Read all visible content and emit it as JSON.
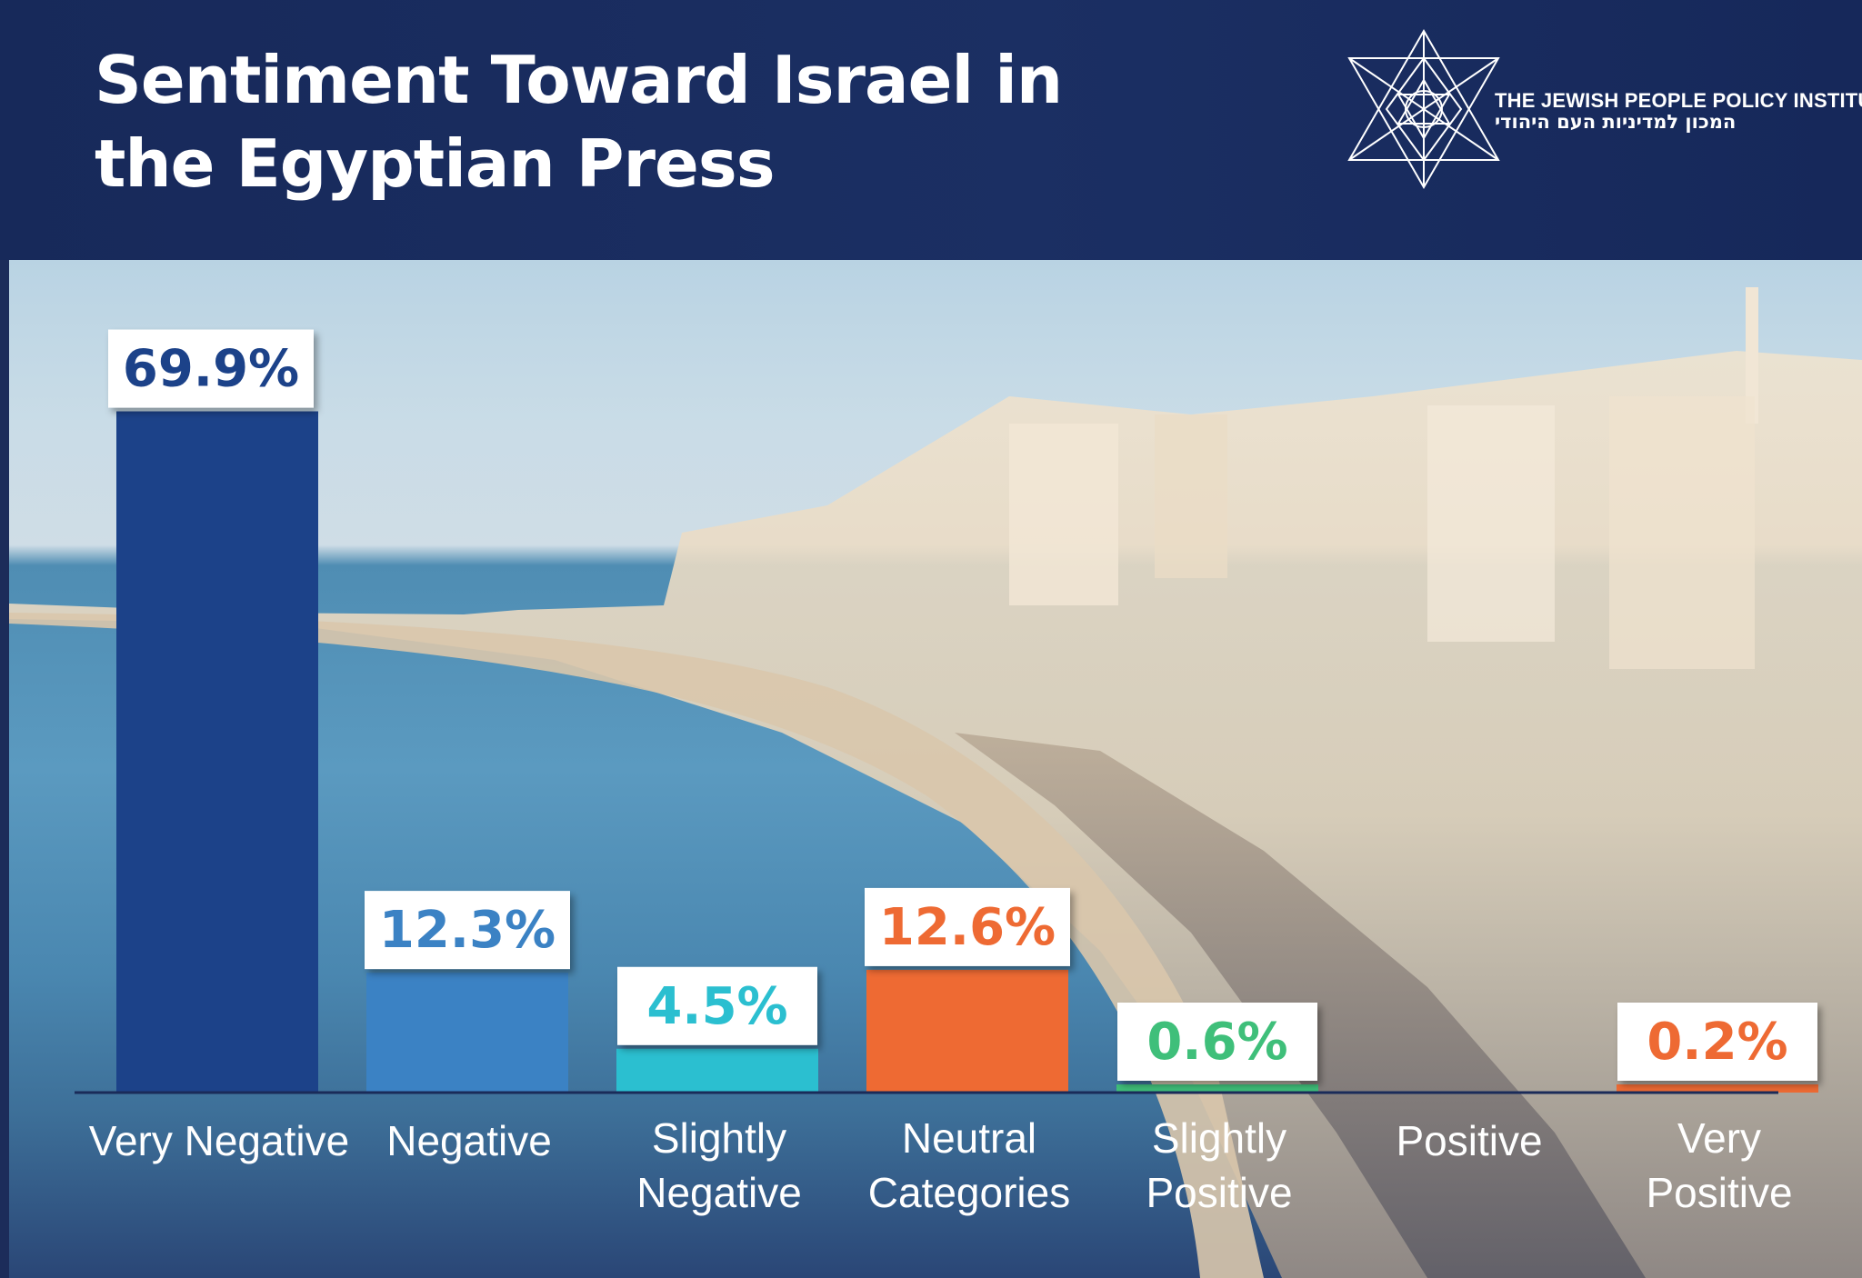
{
  "header": {
    "title_line1": "Sentiment Toward Israel in",
    "title_line2": "the Egyptian Press",
    "logo_en": "THE JEWISH PEOPLE POLICY INSTITUTE",
    "logo_he": "המכון למדיניות העם היהודי",
    "logo_icon": "star-of-david-icon"
  },
  "chart_data": {
    "type": "bar",
    "title": "Sentiment Toward Israel in the Egyptian Press",
    "categories": [
      [
        "Very Negative"
      ],
      [
        "Negative"
      ],
      [
        "Slightly",
        "Negative"
      ],
      [
        "Neutral",
        "Categories"
      ],
      [
        "Slightly",
        "Positive"
      ],
      [
        "Positive"
      ],
      [
        "Very",
        "Positive"
      ]
    ],
    "values": [
      69.9,
      12.3,
      4.5,
      12.6,
      0.6,
      0,
      0.2
    ],
    "value_labels": [
      "69.9%",
      "12.3%",
      "4.5%",
      "12.6%",
      "0.6%",
      "",
      "0.2%"
    ],
    "colors": [
      "#1c4289",
      "#3b82c4",
      "#2bbfd0",
      "#ee6a33",
      "#3fbf7a",
      "#3fbf7a",
      "#ee6a33"
    ],
    "label_colors": [
      "#1c4289",
      "#3b82c4",
      "#2bbfd0",
      "#ee6a33",
      "#3fbf7a",
      "#3fbf7a",
      "#ee6a33"
    ],
    "ylim": [
      0,
      72
    ],
    "grid": false,
    "legend": "none"
  }
}
